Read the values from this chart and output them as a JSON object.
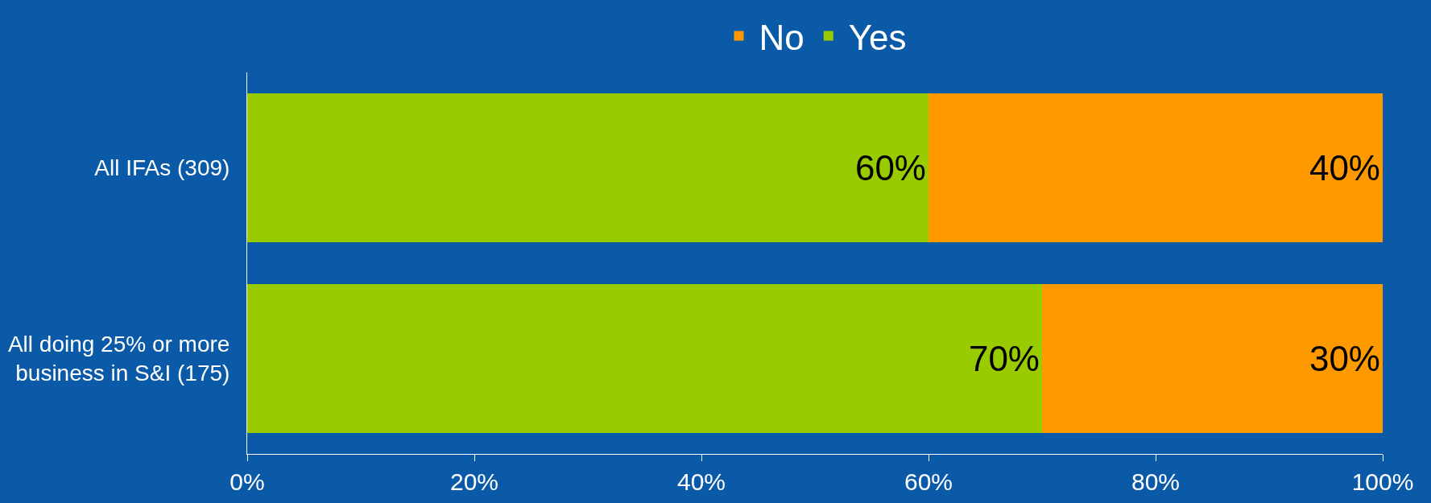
{
  "chart_data": {
    "type": "bar",
    "orientation": "horizontal",
    "stacked": true,
    "categories": [
      "All IFAs (309)",
      "All doing 25% or more\nbusiness in S&I (175)"
    ],
    "series": [
      {
        "name": "Yes",
        "color": "#99cc00",
        "values": [
          60,
          70
        ],
        "value_labels": [
          "60%",
          "70%"
        ]
      },
      {
        "name": "No",
        "color": "#ff9900",
        "values": [
          40,
          30
        ],
        "value_labels": [
          "40%",
          "30%"
        ]
      }
    ],
    "xlim": [
      0,
      100
    ],
    "xticks": [
      {
        "value": 0,
        "label": "0%"
      },
      {
        "value": 20,
        "label": "20%"
      },
      {
        "value": 40,
        "label": "40%"
      },
      {
        "value": 60,
        "label": "60%"
      },
      {
        "value": 80,
        "label": "80%"
      },
      {
        "value": 100,
        "label": "100%"
      }
    ],
    "legend": "top",
    "grid": false
  }
}
